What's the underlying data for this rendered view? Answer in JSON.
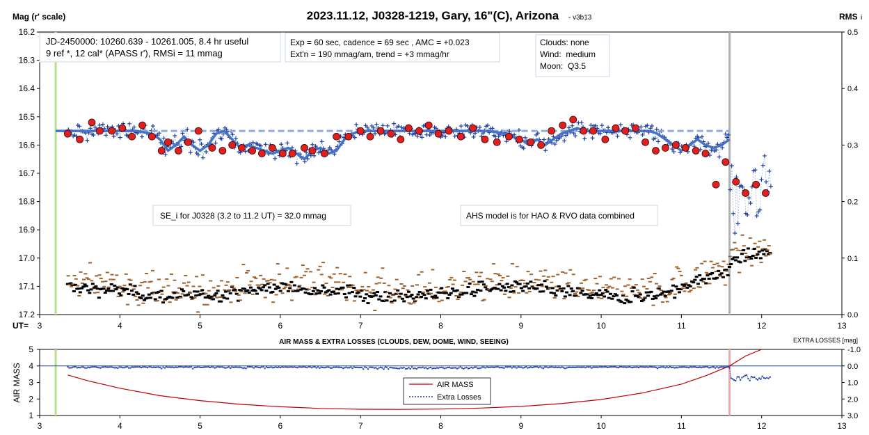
{
  "chart_data": [
    {
      "type": "scatter",
      "title": "2023.11.12, J0328-1219, Gary, 16\"(C), Arizona",
      "title_suffix": "- v3b13",
      "ylabel_left": "Mag (r' scale)",
      "ylabel_right": "RMS",
      "ylabel_right_sub": "i",
      "xlabel": "UT=",
      "xlim": [
        3,
        13
      ],
      "ylim_left": [
        16.2,
        17.2
      ],
      "ylim_right": [
        0.0,
        0.5
      ],
      "left_inverted": true,
      "grid": false,
      "x_ticks": [
        3,
        4,
        5,
        6,
        7,
        8,
        9,
        10,
        11,
        12,
        13
      ],
      "y_ticks_left": [
        16.2,
        16.3,
        16.4,
        16.5,
        16.6,
        16.7,
        16.8,
        16.9,
        17.0,
        17.1,
        17.2
      ],
      "y_tick_labels_left": [
        "16.2",
        "16.3",
        "16.4",
        "16.5",
        "16.6",
        "16.7",
        "16.8",
        "16.9",
        "17.0",
        "17.1",
        "17.2"
      ],
      "y_ticks_right": [
        0.0,
        0.1,
        0.2,
        0.3,
        0.4,
        0.5
      ],
      "y_tick_labels_right": [
        "0.0",
        "0.1",
        "0.2",
        "0.3",
        "0.4",
        "0.5"
      ],
      "vlines": [
        {
          "x": 3.2,
          "color": "#b7dd8f"
        },
        {
          "x": 11.6,
          "color": "#b0b0b0"
        }
      ],
      "annotations": [
        {
          "id": "info",
          "lines": [
            "JD-2450000: 10260.639 - 10261.005, 8.4 hr useful",
            "9 ref *, 12 cal*  (APASS r'), RMSi = 11 mmag"
          ]
        },
        {
          "id": "exp",
          "lines": [
            "Exp = 60 sec, cadence = 69 sec , AMC = +0.023",
            "Ext'n = 190 mmag/am, trend = +3 mmag/hr"
          ]
        },
        {
          "id": "sky",
          "lines": [
            "Clouds: none",
            "Wind:  medium",
            "Moon:  Q3.5"
          ]
        },
        {
          "id": "se",
          "lines": [
            "SE_i for J0328 (3.2 to 11.2 UT) = 32.0 mmag"
          ]
        },
        {
          "id": "ahs",
          "lines": [
            "AHS model is for HAO & RVO data combined"
          ]
        }
      ],
      "series": [
        {
          "name": "AHS model (dashed reference)",
          "color": "#8faadc",
          "x": [
            3.3,
            11.6
          ],
          "y": [
            16.55,
            16.55
          ]
        },
        {
          "name": "Model fit (solid)",
          "color": "#4472c4",
          "x": [
            3.2,
            3.4,
            3.6,
            3.8,
            4.0,
            4.2,
            4.4,
            4.5,
            4.6,
            4.7,
            4.8,
            4.9,
            5.0,
            5.1,
            5.2,
            5.3,
            5.4,
            5.5,
            5.6,
            5.7,
            5.8,
            5.9,
            6.0,
            6.1,
            6.2,
            6.3,
            6.4,
            6.5,
            6.6,
            6.7,
            6.8,
            6.9,
            7.0,
            7.2,
            7.4,
            7.6,
            7.8,
            8.0,
            8.2,
            8.4,
            8.6,
            8.8,
            9.0,
            9.1,
            9.2,
            9.3,
            9.4,
            9.5,
            9.6,
            9.7,
            9.8,
            9.9,
            10.0,
            10.2,
            10.4,
            10.6,
            10.7,
            10.8,
            10.9,
            11.0,
            11.1,
            11.2,
            11.3,
            11.4,
            11.5,
            11.6
          ],
          "y": [
            16.55,
            16.55,
            16.55,
            16.55,
            16.55,
            16.55,
            16.56,
            16.58,
            16.62,
            16.6,
            16.57,
            16.6,
            16.62,
            16.6,
            16.56,
            16.55,
            16.58,
            16.61,
            16.6,
            16.61,
            16.62,
            16.63,
            16.62,
            16.61,
            16.63,
            16.65,
            16.62,
            16.61,
            16.63,
            16.62,
            16.58,
            16.56,
            16.55,
            16.55,
            16.55,
            16.55,
            16.55,
            16.55,
            16.55,
            16.55,
            16.55,
            16.56,
            16.58,
            16.6,
            16.58,
            16.6,
            16.58,
            16.56,
            16.55,
            16.54,
            16.55,
            16.55,
            16.55,
            16.55,
            16.55,
            16.55,
            16.56,
            16.58,
            16.6,
            16.62,
            16.6,
            16.58,
            16.6,
            16.61,
            16.6,
            16.58
          ]
        },
        {
          "name": "Binned magnitudes (red dots)",
          "color": "#e02020",
          "x": [
            3.35,
            3.5,
            3.65,
            3.75,
            3.9,
            4.03,
            4.15,
            4.28,
            4.4,
            4.52,
            4.6,
            4.73,
            4.85,
            4.98,
            5.15,
            5.28,
            5.4,
            5.52,
            5.65,
            5.77,
            5.9,
            6.03,
            6.15,
            6.3,
            6.4,
            6.55,
            6.7,
            6.85,
            7.0,
            7.12,
            7.25,
            7.38,
            7.5,
            7.6,
            7.73,
            7.85,
            7.97,
            8.1,
            8.25,
            8.4,
            8.55,
            8.7,
            8.85,
            8.98,
            9.12,
            9.25,
            9.38,
            9.52,
            9.65,
            9.78,
            9.9,
            10.05,
            10.18,
            10.3,
            10.43,
            10.55,
            10.68,
            10.8,
            10.93,
            11.05,
            11.18,
            11.3,
            11.43,
            11.55,
            11.68,
            11.8,
            11.93,
            12.05
          ],
          "y": [
            16.56,
            16.58,
            16.52,
            16.55,
            16.55,
            16.54,
            16.57,
            16.53,
            16.57,
            16.62,
            16.59,
            16.62,
            16.59,
            16.55,
            16.61,
            16.62,
            16.6,
            16.61,
            16.62,
            16.63,
            16.61,
            16.63,
            16.63,
            16.61,
            16.62,
            16.63,
            16.57,
            16.57,
            16.55,
            16.57,
            16.55,
            16.56,
            16.58,
            16.54,
            16.55,
            16.53,
            16.56,
            16.55,
            16.57,
            16.54,
            16.58,
            16.59,
            16.57,
            16.58,
            16.59,
            16.6,
            16.55,
            16.53,
            16.51,
            16.55,
            16.55,
            16.58,
            16.54,
            16.55,
            16.54,
            16.59,
            16.62,
            16.61,
            16.6,
            16.61,
            16.62,
            16.63,
            16.74,
            16.66,
            16.73,
            16.77,
            16.74,
            16.77
          ]
        },
        {
          "name": "Individual magnitudes (+)",
          "color": "#1f3f9f",
          "x": [],
          "y": []
        },
        {
          "name": "RMS per image (right axis)",
          "color": "#000000",
          "x": [],
          "y": []
        }
      ]
    },
    {
      "type": "line",
      "title": "AIR MASS & EXTRA LOSSES (CLOUDS, DEW, DOME, WIND, SEEING)",
      "ylabel_left": "AIR MASS",
      "ylabel_right": "EXTRA LOSSES [mag]",
      "xlim": [
        3,
        13
      ],
      "ylim_left": [
        1,
        5
      ],
      "ylim_right": [
        3.0,
        -1.0
      ],
      "x_ticks": [
        3,
        4,
        5,
        6,
        7,
        8,
        9,
        10,
        11,
        12,
        13
      ],
      "y_ticks_left": [
        1,
        2,
        3,
        4,
        5
      ],
      "y_ticks_right": [
        -1.0,
        0.0,
        1.0,
        2.0,
        3.0
      ],
      "y_tick_labels_right": [
        "-1.0",
        "0.0",
        "1.0",
        "2.0",
        "3.0"
      ],
      "legend": "center",
      "vlines": [
        {
          "x": 3.2,
          "color": "#b7dd8f"
        },
        {
          "x": 11.6,
          "color": "#f4aaaa"
        }
      ],
      "series": [
        {
          "name": "AIR MASS",
          "color": "#c00000",
          "x": [
            3.35,
            3.6,
            4.0,
            4.5,
            5.0,
            5.5,
            6.0,
            6.5,
            7.0,
            7.5,
            8.0,
            8.5,
            9.0,
            9.5,
            10.0,
            10.5,
            11.0,
            11.3,
            11.6,
            11.8,
            12.0
          ],
          "y": [
            3.45,
            3.1,
            2.65,
            2.2,
            1.9,
            1.68,
            1.53,
            1.43,
            1.38,
            1.37,
            1.39,
            1.45,
            1.55,
            1.72,
            1.97,
            2.35,
            2.9,
            3.4,
            4.0,
            4.6,
            5.0
          ]
        },
        {
          "name": "Extra Losses",
          "color": "#1f3f9f",
          "x": [],
          "y": []
        }
      ]
    }
  ]
}
